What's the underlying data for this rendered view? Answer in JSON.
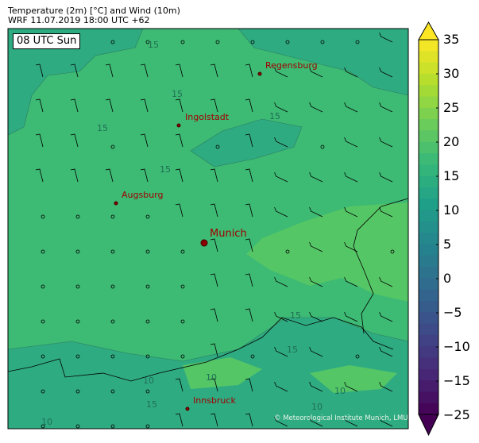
{
  "header": {
    "title": "Temperature (2m) [°C] and Wind (10m)",
    "subtitle": "WRF 11.07.2019 18:00 UTC +62"
  },
  "map": {
    "time_label": "08 UTC Sun",
    "cities": [
      {
        "name": "Regensburg",
        "major": false
      },
      {
        "name": "Ingolstadt",
        "major": false
      },
      {
        "name": "Augsburg",
        "major": false
      },
      {
        "name": "Munich",
        "major": true
      },
      {
        "name": "Innsbruck",
        "major": false
      }
    ],
    "contour_labels": [
      "15",
      "15",
      "15",
      "15",
      "15",
      "15",
      "15",
      "10",
      "10",
      "10",
      "10",
      "10",
      "15"
    ],
    "copyright": "© Meteorological Institute Munich, LMU",
    "colors": {
      "base": "#3dba73",
      "cool": "#2fab82",
      "warm": "#55c666",
      "city": "#a00000"
    }
  },
  "colorbar": {
    "ticks": [
      "35",
      "30",
      "25",
      "20",
      "15",
      "10",
      "5",
      "0",
      "−5",
      "−10",
      "−15",
      "−25"
    ],
    "range": [
      -25,
      35
    ],
    "colormap": "viridis",
    "extend": "both"
  }
}
